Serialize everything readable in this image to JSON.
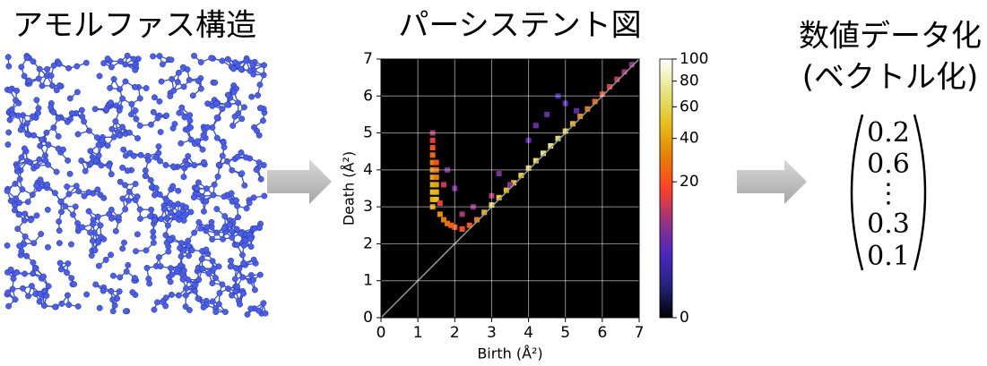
{
  "structure": {
    "title": "アモルファス構造"
  },
  "persistence": {
    "title": "パーシステント図",
    "chart_data": {
      "type": "heatmap",
      "xlabel": "Birth (Å²)",
      "ylabel": "Death (Å²)",
      "xlim": [
        0,
        7
      ],
      "ylim": [
        0,
        7
      ],
      "xticks": [
        0,
        1,
        2,
        3,
        4,
        5,
        6,
        7
      ],
      "yticks": [
        0,
        1,
        2,
        3,
        4,
        5,
        6,
        7
      ],
      "grid": true,
      "x": [
        1.4,
        1.4,
        1.4,
        1.4,
        1.4,
        1.4,
        1.4,
        1.4,
        1.4,
        1.4,
        1.4,
        1.5,
        1.5,
        1.5,
        1.5,
        1.5,
        1.5,
        1.6,
        1.7,
        1.8,
        1.9,
        2.0,
        2.2,
        2.4,
        2.6,
        2.8,
        3.0,
        3.2,
        3.4,
        3.6,
        3.8,
        4.0,
        4.2,
        4.4,
        4.6,
        4.8,
        5.0,
        5.2,
        5.4,
        5.6,
        5.8,
        6.0,
        6.2,
        6.4,
        6.6,
        6.8,
        2.5,
        3.0,
        3.5,
        2.0,
        1.8,
        4.0,
        4.5,
        5.0,
        4.8,
        5.3,
        4.2,
        3.2,
        2.2,
        1.6,
        1.7
      ],
      "y": [
        3.0,
        3.2,
        3.4,
        3.6,
        3.8,
        4.0,
        4.2,
        4.4,
        4.6,
        4.8,
        5.0,
        3.2,
        3.4,
        3.6,
        3.8,
        4.0,
        4.2,
        2.8,
        2.65,
        2.55,
        2.5,
        2.45,
        2.4,
        2.5,
        2.65,
        2.85,
        3.05,
        3.25,
        3.45,
        3.65,
        3.85,
        4.05,
        4.25,
        4.45,
        4.65,
        4.85,
        5.05,
        5.25,
        5.45,
        5.65,
        5.85,
        6.05,
        6.25,
        6.45,
        6.65,
        6.85,
        3.0,
        3.3,
        3.6,
        3.5,
        4.0,
        4.8,
        5.5,
        5.8,
        6.0,
        5.6,
        5.2,
        3.9,
        2.8,
        3.1,
        3.6
      ],
      "values": [
        40,
        45,
        50,
        45,
        40,
        35,
        30,
        25,
        20,
        15,
        10,
        50,
        45,
        40,
        30,
        25,
        20,
        35,
        30,
        28,
        25,
        22,
        20,
        22,
        30,
        45,
        60,
        55,
        50,
        50,
        55,
        60,
        65,
        70,
        70,
        65,
        55,
        45,
        35,
        30,
        25,
        20,
        15,
        12,
        10,
        8,
        8,
        10,
        8,
        6,
        6,
        4,
        5,
        4,
        3,
        4,
        5,
        6,
        10,
        15,
        12
      ],
      "colorbar": {
        "lim": [
          0,
          100
        ],
        "ticks": [
          0,
          20,
          40,
          60,
          80,
          100
        ],
        "gamma": 0.4
      }
    }
  },
  "vector": {
    "title_lines": [
      "数値データ化",
      "(ベクトル化)"
    ],
    "entries": [
      "0.2",
      "0.6",
      "⋮",
      "0.3",
      "0.1"
    ]
  }
}
